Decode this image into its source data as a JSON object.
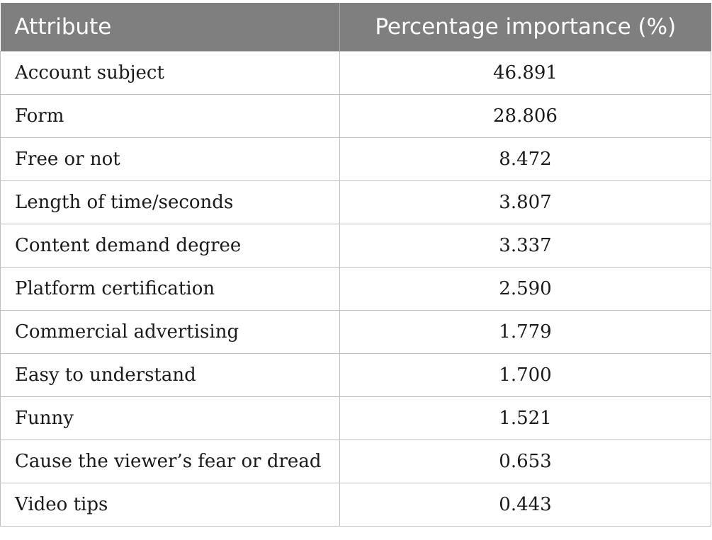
{
  "chart_data": {
    "type": "table",
    "columns": [
      "Attribute",
      "Percentage importance (%)"
    ],
    "rows": [
      {
        "attribute": "Account subject",
        "value": "46.891"
      },
      {
        "attribute": "Form",
        "value": "28.806"
      },
      {
        "attribute": "Free or not",
        "value": "8.472"
      },
      {
        "attribute": "Length of time/seconds",
        "value": "3.807"
      },
      {
        "attribute": "Content demand degree",
        "value": "3.337"
      },
      {
        "attribute": "Platform certification",
        "value": "2.590"
      },
      {
        "attribute": "Commercial advertising",
        "value": "1.779"
      },
      {
        "attribute": "Easy to understand",
        "value": "1.700"
      },
      {
        "attribute": "Funny",
        "value": "1.521"
      },
      {
        "attribute": "Cause the viewer’s fear or dread",
        "value": "0.653"
      },
      {
        "attribute": "Video tips",
        "value": "0.443"
      }
    ]
  },
  "colors": {
    "header_bg": "#7f7f7f",
    "header_text": "#ffffff",
    "grid": "#bdbdbd"
  }
}
